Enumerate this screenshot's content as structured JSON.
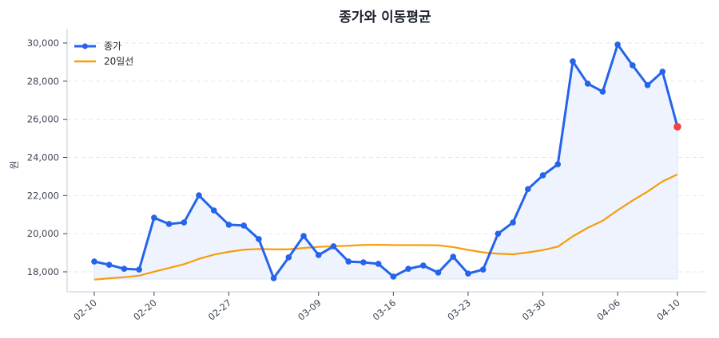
{
  "chart_data": {
    "type": "line",
    "title": "종가와 이동평균",
    "xlabel": "",
    "ylabel": "원",
    "ylim": [
      17000,
      30600
    ],
    "yticks": [
      18000,
      20000,
      22000,
      24000,
      26000,
      28000,
      30000
    ],
    "ytick_labels": [
      "18,000",
      "20,000",
      "22,000",
      "24,000",
      "26,000",
      "28,000",
      "30,000"
    ],
    "xtick_labels": [
      "02-10",
      "02-20",
      "02-27",
      "03-09",
      "03-16",
      "03-23",
      "03-30",
      "04-06",
      "04-10"
    ],
    "xtick_indices": [
      0,
      4,
      9,
      15,
      20,
      25,
      30,
      35,
      39
    ],
    "grid": "horizontal dashed",
    "legend_position": "upper left",
    "legend": [
      "종가",
      "20일선"
    ],
    "series": [
      {
        "name": "종가",
        "color": "#2563eb",
        "marker": "circle",
        "fill": "#eef3fd",
        "last_point_color": "#ef4444",
        "values": [
          18540,
          18370,
          18160,
          18120,
          20840,
          20510,
          20590,
          22010,
          21220,
          20470,
          20430,
          19720,
          17670,
          18760,
          19880,
          18880,
          19340,
          18540,
          18500,
          18420,
          17750,
          18160,
          18330,
          17960,
          18790,
          17910,
          18120,
          20000,
          20590,
          22340,
          23060,
          23640,
          29040,
          27870,
          27450,
          29920,
          28830,
          27790,
          28500,
          25610
        ]
      },
      {
        "name": "20일선",
        "color": "#f59e0b",
        "marker": "none",
        "values": [
          17590,
          17660,
          17720,
          17800,
          18010,
          18200,
          18400,
          18680,
          18900,
          19050,
          19160,
          19200,
          19180,
          19180,
          19250,
          19310,
          19340,
          19370,
          19410,
          19420,
          19400,
          19400,
          19400,
          19390,
          19300,
          19150,
          19020,
          18950,
          18920,
          19020,
          19140,
          19320,
          19860,
          20310,
          20680,
          21230,
          21740,
          22210,
          22740,
          23110
        ]
      }
    ]
  }
}
